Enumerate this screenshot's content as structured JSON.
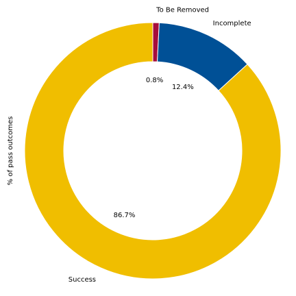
{
  "chart_data": {
    "type": "pie",
    "style": "donut",
    "title": "",
    "ylabel": "% of pass outcomes",
    "categories": [
      "To Be Removed",
      "Incomplete",
      "Success"
    ],
    "values": [
      0.8,
      12.4,
      86.7
    ],
    "value_labels": [
      "0.8%",
      "12.4%",
      "86.7%"
    ],
    "colors": [
      "#a50d3c",
      "#005096",
      "#f0be00"
    ],
    "start": "top",
    "direction": "clockwise",
    "legend": "none",
    "grid": false
  }
}
